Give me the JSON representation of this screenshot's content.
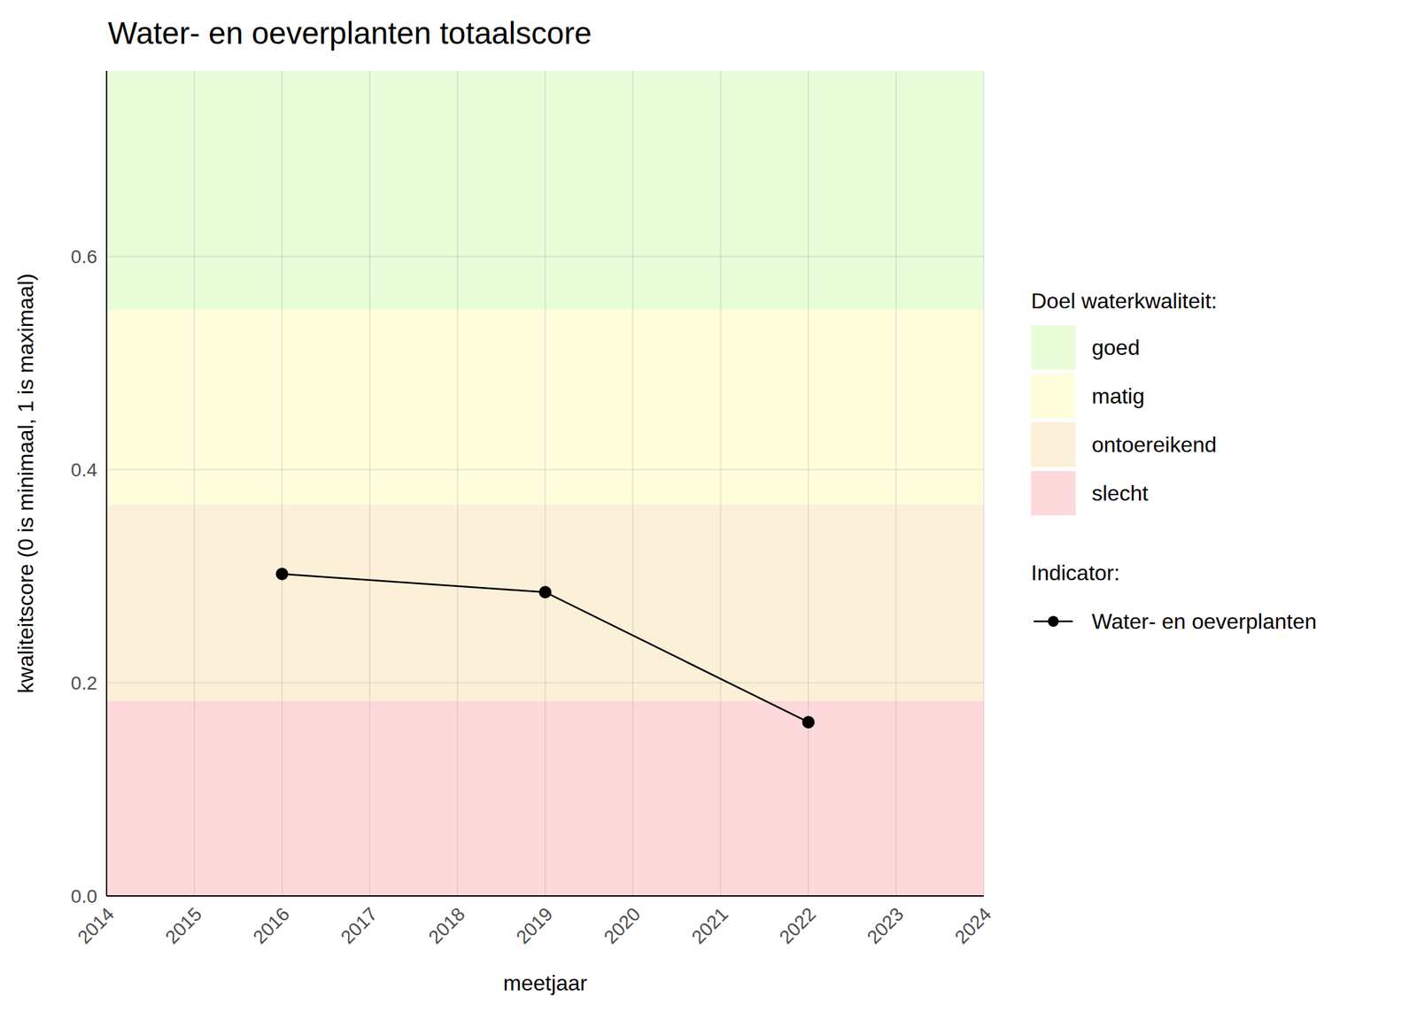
{
  "chart_data": {
    "type": "line",
    "title": "Water- en oeverplanten totaalscore",
    "x_label": "meetjaar",
    "y_label": "kwaliteitscore (0 is minimaal, 1 is maximaal)",
    "x": [
      2016,
      2019,
      2022
    ],
    "series": [
      {
        "name": "Water- en oeverplanten",
        "color": "#000000",
        "marker": "circle",
        "values": [
          0.302,
          0.285,
          0.163
        ]
      }
    ],
    "xlim": [
      2014,
      2024
    ],
    "xticks": [
      2014,
      2015,
      2016,
      2017,
      2018,
      2019,
      2020,
      2021,
      2022,
      2023,
      2024
    ],
    "ylim": [
      0,
      0.774
    ],
    "yticks": [
      {
        "value": 0,
        "label": "0.0"
      },
      0.2,
      0.4,
      0.6
    ],
    "grid": true,
    "bands_title": "Doel waterkwaliteit:",
    "bands": [
      {
        "name": "goed",
        "color": "#e8fdd8",
        "from": 0.55,
        "to": 0.774
      },
      {
        "name": "matig",
        "color": "#fefedc",
        "from": 0.367,
        "to": 0.55
      },
      {
        "name": "ontoereikend",
        "color": "#fdf0d8",
        "from": 0.183,
        "to": 0.367
      },
      {
        "name": "slecht",
        "color": "#fdd9db",
        "from": 0,
        "to": 0.183
      }
    ],
    "series_legend_title": "Indicator:"
  }
}
